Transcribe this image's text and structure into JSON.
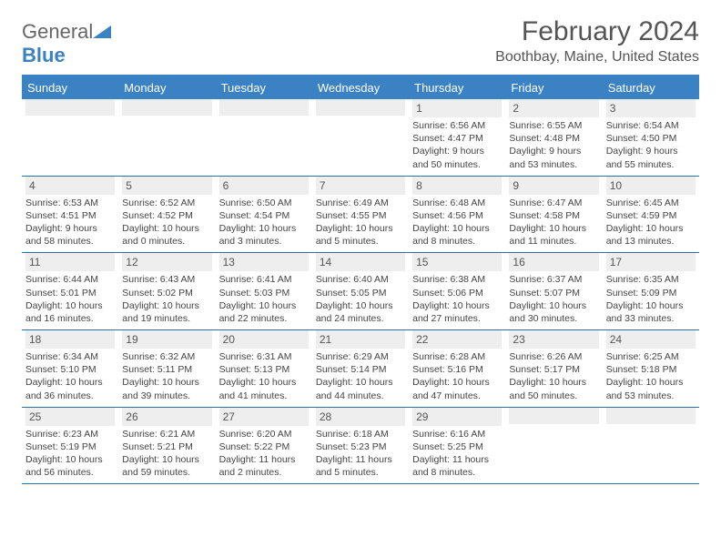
{
  "logo": {
    "text1": "General",
    "text2": "Blue"
  },
  "title": "February 2024",
  "location": "Boothbay, Maine, United States",
  "day_headers": [
    "Sunday",
    "Monday",
    "Tuesday",
    "Wednesday",
    "Thursday",
    "Friday",
    "Saturday"
  ],
  "colors": {
    "header_bg": "#3b82c4",
    "header_border": "#2f6ea8",
    "daynum_bg": "#eeeeee",
    "text": "#444444"
  },
  "weeks": [
    [
      {
        "n": "",
        "sunrise": "",
        "sunset": "",
        "daylight": ""
      },
      {
        "n": "",
        "sunrise": "",
        "sunset": "",
        "daylight": ""
      },
      {
        "n": "",
        "sunrise": "",
        "sunset": "",
        "daylight": ""
      },
      {
        "n": "",
        "sunrise": "",
        "sunset": "",
        "daylight": ""
      },
      {
        "n": "1",
        "sunrise": "6:56 AM",
        "sunset": "4:47 PM",
        "daylight": "9 hours and 50 minutes."
      },
      {
        "n": "2",
        "sunrise": "6:55 AM",
        "sunset": "4:48 PM",
        "daylight": "9 hours and 53 minutes."
      },
      {
        "n": "3",
        "sunrise": "6:54 AM",
        "sunset": "4:50 PM",
        "daylight": "9 hours and 55 minutes."
      }
    ],
    [
      {
        "n": "4",
        "sunrise": "6:53 AM",
        "sunset": "4:51 PM",
        "daylight": "9 hours and 58 minutes."
      },
      {
        "n": "5",
        "sunrise": "6:52 AM",
        "sunset": "4:52 PM",
        "daylight": "10 hours and 0 minutes."
      },
      {
        "n": "6",
        "sunrise": "6:50 AM",
        "sunset": "4:54 PM",
        "daylight": "10 hours and 3 minutes."
      },
      {
        "n": "7",
        "sunrise": "6:49 AM",
        "sunset": "4:55 PM",
        "daylight": "10 hours and 5 minutes."
      },
      {
        "n": "8",
        "sunrise": "6:48 AM",
        "sunset": "4:56 PM",
        "daylight": "10 hours and 8 minutes."
      },
      {
        "n": "9",
        "sunrise": "6:47 AM",
        "sunset": "4:58 PM",
        "daylight": "10 hours and 11 minutes."
      },
      {
        "n": "10",
        "sunrise": "6:45 AM",
        "sunset": "4:59 PM",
        "daylight": "10 hours and 13 minutes."
      }
    ],
    [
      {
        "n": "11",
        "sunrise": "6:44 AM",
        "sunset": "5:01 PM",
        "daylight": "10 hours and 16 minutes."
      },
      {
        "n": "12",
        "sunrise": "6:43 AM",
        "sunset": "5:02 PM",
        "daylight": "10 hours and 19 minutes."
      },
      {
        "n": "13",
        "sunrise": "6:41 AM",
        "sunset": "5:03 PM",
        "daylight": "10 hours and 22 minutes."
      },
      {
        "n": "14",
        "sunrise": "6:40 AM",
        "sunset": "5:05 PM",
        "daylight": "10 hours and 24 minutes."
      },
      {
        "n": "15",
        "sunrise": "6:38 AM",
        "sunset": "5:06 PM",
        "daylight": "10 hours and 27 minutes."
      },
      {
        "n": "16",
        "sunrise": "6:37 AM",
        "sunset": "5:07 PM",
        "daylight": "10 hours and 30 minutes."
      },
      {
        "n": "17",
        "sunrise": "6:35 AM",
        "sunset": "5:09 PM",
        "daylight": "10 hours and 33 minutes."
      }
    ],
    [
      {
        "n": "18",
        "sunrise": "6:34 AM",
        "sunset": "5:10 PM",
        "daylight": "10 hours and 36 minutes."
      },
      {
        "n": "19",
        "sunrise": "6:32 AM",
        "sunset": "5:11 PM",
        "daylight": "10 hours and 39 minutes."
      },
      {
        "n": "20",
        "sunrise": "6:31 AM",
        "sunset": "5:13 PM",
        "daylight": "10 hours and 41 minutes."
      },
      {
        "n": "21",
        "sunrise": "6:29 AM",
        "sunset": "5:14 PM",
        "daylight": "10 hours and 44 minutes."
      },
      {
        "n": "22",
        "sunrise": "6:28 AM",
        "sunset": "5:16 PM",
        "daylight": "10 hours and 47 minutes."
      },
      {
        "n": "23",
        "sunrise": "6:26 AM",
        "sunset": "5:17 PM",
        "daylight": "10 hours and 50 minutes."
      },
      {
        "n": "24",
        "sunrise": "6:25 AM",
        "sunset": "5:18 PM",
        "daylight": "10 hours and 53 minutes."
      }
    ],
    [
      {
        "n": "25",
        "sunrise": "6:23 AM",
        "sunset": "5:19 PM",
        "daylight": "10 hours and 56 minutes."
      },
      {
        "n": "26",
        "sunrise": "6:21 AM",
        "sunset": "5:21 PM",
        "daylight": "10 hours and 59 minutes."
      },
      {
        "n": "27",
        "sunrise": "6:20 AM",
        "sunset": "5:22 PM",
        "daylight": "11 hours and 2 minutes."
      },
      {
        "n": "28",
        "sunrise": "6:18 AM",
        "sunset": "5:23 PM",
        "daylight": "11 hours and 5 minutes."
      },
      {
        "n": "29",
        "sunrise": "6:16 AM",
        "sunset": "5:25 PM",
        "daylight": "11 hours and 8 minutes."
      },
      {
        "n": "",
        "sunrise": "",
        "sunset": "",
        "daylight": ""
      },
      {
        "n": "",
        "sunrise": "",
        "sunset": "",
        "daylight": ""
      }
    ]
  ],
  "labels": {
    "sunrise": "Sunrise:",
    "sunset": "Sunset:",
    "daylight": "Daylight:"
  }
}
